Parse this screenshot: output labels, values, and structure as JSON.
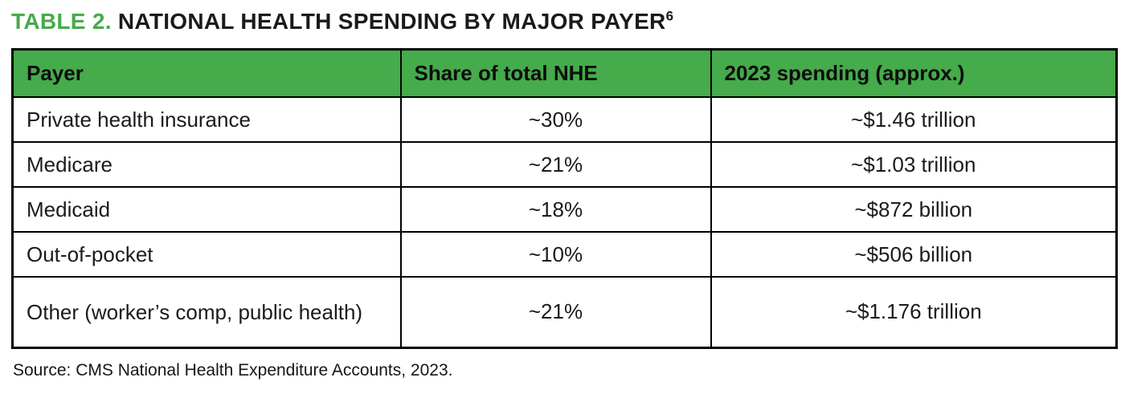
{
  "title": {
    "label": "TABLE 2.",
    "text": " NATIONAL HEALTH SPENDING BY MAJOR PAYER",
    "footnote": "6"
  },
  "colors": {
    "header_green": "#45ab4b",
    "title_green": "#45ab4b",
    "border_black": "#000000"
  },
  "table": {
    "headers": [
      "Payer",
      "Share of total NHE",
      "2023 spending (approx.)"
    ],
    "rows": [
      {
        "payer": "Private health insurance",
        "share": "~30%",
        "spending": "~$1.46 trillion"
      },
      {
        "payer": "Medicare",
        "share": "~21%",
        "spending": "~$1.03 trillion"
      },
      {
        "payer": "Medicaid",
        "share": "~18%",
        "spending": "~$872 billion"
      },
      {
        "payer": "Out-of-pocket",
        "share": "~10%",
        "spending": "~$506 billion"
      },
      {
        "payer": "Other (worker’s comp, public health)",
        "share": "~21%",
        "spending": "~$1.176 trillion"
      }
    ]
  },
  "source": "Source: CMS National Health Expenditure Accounts, 2023."
}
